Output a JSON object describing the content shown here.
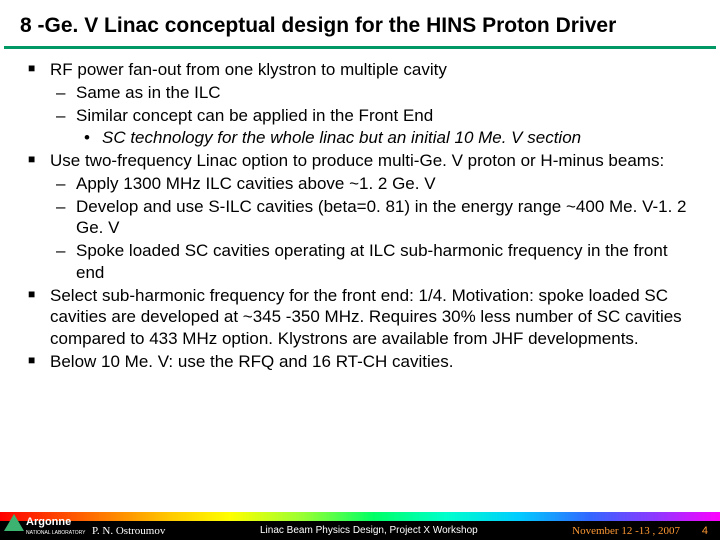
{
  "title": "8 -Ge. V Linac conceptual design for the HINS Proton Driver",
  "bullets": {
    "b1": "RF power fan-out from one klystron to multiple cavity",
    "b1a": "Same as in the ILC",
    "b1b": "Similar concept can be applied in the Front End",
    "b1b1": "SC technology for the whole linac but an initial 10 Me. V section",
    "b2": "Use two-frequency Linac option to produce multi-Ge. V proton or H-minus beams:",
    "b2a": "Apply 1300 MHz ILC cavities above ~1. 2 Ge. V",
    "b2b": "Develop and use S-ILC cavities (beta=0. 81) in the energy range ~400 Me. V-1. 2 Ge. V",
    "b2c": "Spoke loaded SC cavities operating at ILC sub-harmonic frequency in the front end",
    "b3": "Select sub-harmonic frequency for the front end: 1/4. Motivation: spoke loaded SC cavities are developed at ~345 -350 MHz. Requires 30% less number of SC cavities compared to 433 MHz option. Klystrons are available from JHF developments.",
    "b4": "Below 10 Me. V: use the RFQ and 16 RT-CH cavities."
  },
  "footer": {
    "author": "P. N. Ostroumov",
    "mid": "Linac Beam Physics Design, Project X Workshop",
    "date": "November 12 -13 , 2007",
    "page": "4",
    "logo_main": "Argonne",
    "logo_sub": "NATIONAL LABORATORY"
  },
  "colors": {
    "underline": "#009966",
    "footer_date": "#ff9933",
    "background": "#ffffff"
  }
}
